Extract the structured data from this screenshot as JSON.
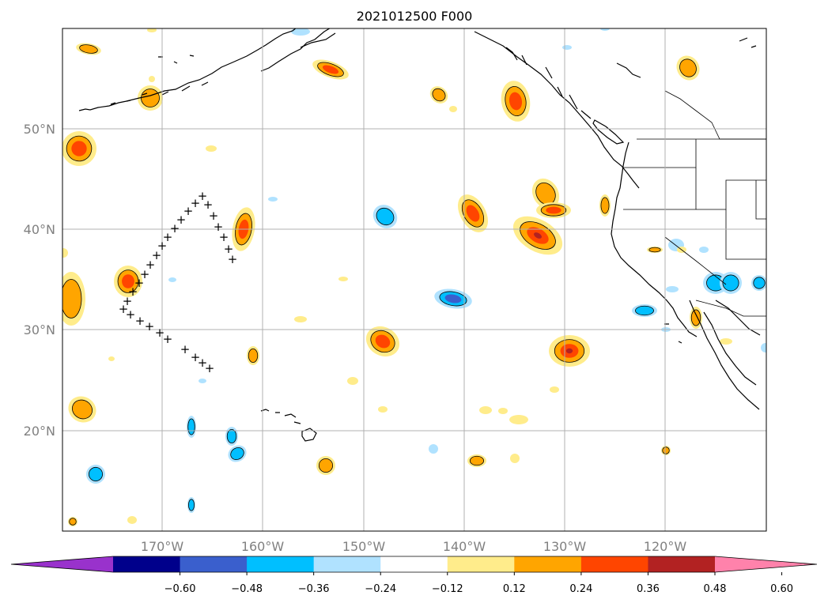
{
  "title": "2021012500 F000",
  "lon_labels": [
    "170°W",
    "160°W",
    "150°W",
    "140°W",
    "130°W",
    "120°W"
  ],
  "lat_labels": [
    "50°N",
    "40°N",
    "30°N",
    "20°N"
  ],
  "colorbar": {
    "ticks": [
      "−0.60",
      "−0.48",
      "−0.36",
      "−0.24",
      "−0.12",
      "0.12",
      "0.24",
      "0.36",
      "0.48",
      "0.60"
    ],
    "colors": [
      "#9932cc",
      "#00008b",
      "#3a5fcd",
      "#00bfff",
      "#b0e2ff",
      "#ffffff",
      "#ffec8b",
      "#ffa500",
      "#ff4500",
      "#b22222",
      "#ff82ab"
    ]
  },
  "colors": {
    "land_line": "#000000",
    "grid": "#b0b0b0"
  },
  "markers": {
    "symbol": "+",
    "count": 37
  },
  "grid": true
}
